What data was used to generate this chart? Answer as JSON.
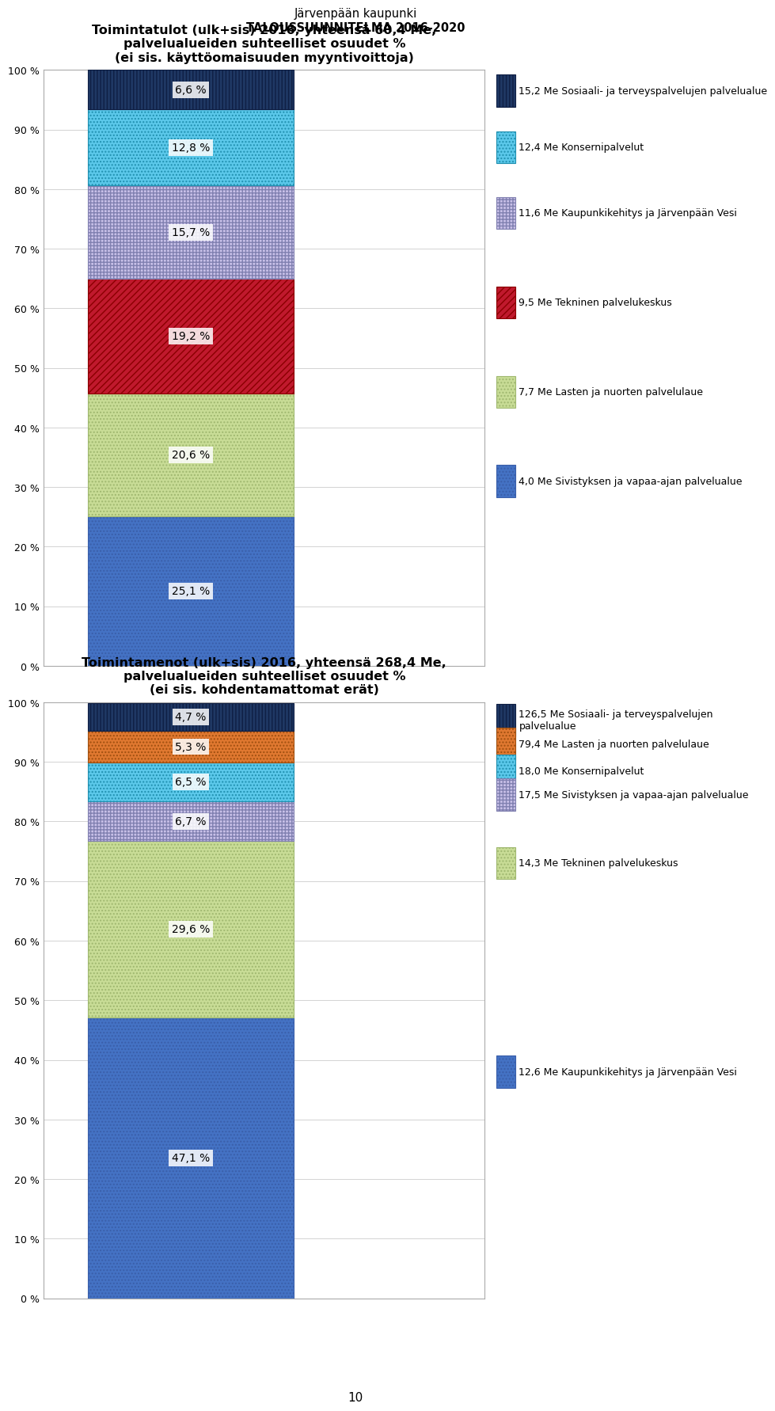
{
  "page_title_line1": "Järvenpään kaupunki",
  "page_title_line2": "TALOUSSUUNNITELMA 2016-2020",
  "chart1_title": "Toimintatulot (ulk+sis) 2016, yhteensä 60,4 Me,\npalvelualueiden suhteelliset osuudet %\n(ei sis. käyttöomaisuuden myyntivoittoja)",
  "chart1_segments": [
    25.1,
    20.6,
    19.2,
    15.7,
    12.8,
    6.6
  ],
  "chart1_labels": [
    "25,1 %",
    "20,6 %",
    "19,2 %",
    "15,7 %",
    "12,8 %",
    "6,6 %"
  ],
  "chart1_legend": [
    "4,0 Me Sivistyksen ja vapaa-ajan palvelualue",
    "7,7 Me Lasten ja nuorten palvelulaue",
    "9,5 Me Tekninen palvelukeskus",
    "11,6 Me Kaupunkikehitys ja Järvenpään Vesi",
    "12,4 Me Konsernipalvelut",
    "15,2 Me Sosiaali- ja terveyspalvelujen palvelualue"
  ],
  "chart1_colors": [
    "#4472c4",
    "#d0e8c8",
    "#c0305a",
    "#b8b8e8",
    "#5bbfea",
    "#1f3864"
  ],
  "chart1_hatches": [
    "....",
    "....",
    "////",
    "++++",
    "....",
    "||||"
  ],
  "chart2_title": "Toimintamenot (ulk+sis) 2016, yhteensä 268,4 Me,\npalvelualueiden suhteelliset osuudet %\n(ei sis. kohdentamattomat erät)",
  "chart2_segments": [
    47.1,
    29.6,
    6.7,
    6.5,
    5.3,
    4.7
  ],
  "chart2_labels": [
    "47,1 %",
    "29,6 %",
    "6,7 %",
    "6,5 %",
    "5,3 %",
    "4,7 %"
  ],
  "chart2_legend_line1": [
    "12,6 Me Kaupunkikehitys ja Järvenpään Vesi",
    "14,3 Me Tekninen palvelukeskus"
  ],
  "chart2_legend_line2": [
    "17,5 Me Sivistyksen ja vapaa-ajan palvelualue",
    "18,0 Me Konsernipalvelut"
  ],
  "chart2_legend_line3": [
    "79,4 Me Lasten ja nuorten palvelulaue"
  ],
  "chart2_legend_line4": [
    "126,5 Me Sosiaali- ja terveyspalvelujen\npalvelualue"
  ],
  "chart2_legend": [
    "12,6 Me Kaupunkikehitys ja Järvenpään Vesi",
    "14,3 Me Tekninen palvelukeskus",
    "17,5 Me Sivistyksen ja vapaa-ajan palvelualue",
    "18,0 Me Konsernipalvelut",
    "79,4 Me Lasten ja nuorten palvelulaue",
    "126,5 Me Sosiaali- ja terveyspalvelujen\npalvelualue"
  ],
  "chart2_colors": [
    "#4472c4",
    "#d0e8c8",
    "#b8b8e8",
    "#5bbfea",
    "#e07830",
    "#1f3864"
  ],
  "chart2_hatches": [
    "....",
    "....",
    "++++",
    "....",
    "....",
    "||||"
  ]
}
